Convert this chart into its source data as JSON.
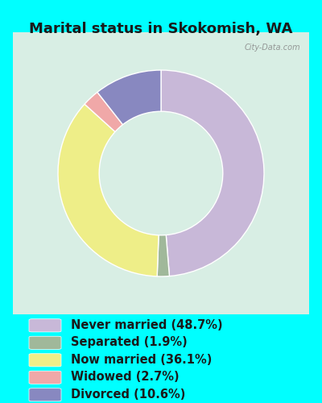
{
  "title": "Marital status in Skokomish, WA",
  "background_color": "#00FFFF",
  "chart_bg_color": "#d8eee4",
  "slices": [
    {
      "label": "Never married (48.7%)",
      "value": 48.7,
      "color": "#c8b8d8"
    },
    {
      "label": "Separated (1.9%)",
      "value": 1.9,
      "color": "#a0b89a"
    },
    {
      "label": "Now married (36.1%)",
      "value": 36.1,
      "color": "#eeee88"
    },
    {
      "label": "Widowed (2.7%)",
      "value": 2.7,
      "color": "#f0a8a8"
    },
    {
      "label": "Divorced (10.6%)",
      "value": 10.6,
      "color": "#8888c0"
    }
  ],
  "donut_width": 0.4,
  "title_fontsize": 13,
  "legend_fontsize": 10.5,
  "startangle": 90
}
